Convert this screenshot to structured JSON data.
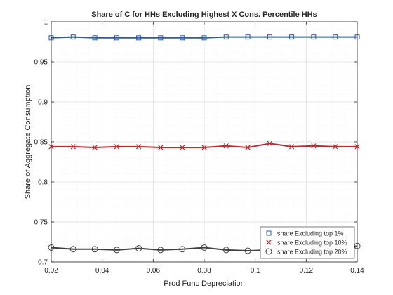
{
  "chart_data": {
    "type": "line",
    "title": "Share of C for HHs Excluding Highest X Cons. Percentile HHs",
    "xlabel": "Prod Func Depreciation",
    "ylabel": "Share of Aggregate Consumption",
    "xlim": [
      0.02,
      0.14
    ],
    "ylim": [
      0.7,
      1.0
    ],
    "xticks": [
      0.02,
      0.04,
      0.06,
      0.08,
      0.1,
      0.12,
      0.14
    ],
    "xtick_labels": [
      "0.02",
      "0.04",
      "0.06",
      "0.08",
      "0.1",
      "0.12",
      "0.14"
    ],
    "yticks": [
      0.7,
      0.75,
      0.8,
      0.85,
      0.9,
      0.95,
      1.0
    ],
    "ytick_labels": [
      "0.7",
      "0.75",
      "0.8",
      "0.85",
      "0.9",
      "0.95",
      "1"
    ],
    "grid": true,
    "legend_position": "bottom-right",
    "x": [
      0.02,
      0.0286,
      0.0371,
      0.0457,
      0.0543,
      0.0629,
      0.0714,
      0.08,
      0.0886,
      0.0971,
      0.1057,
      0.1143,
      0.1229,
      0.1314,
      0.14
    ],
    "series": [
      {
        "name": "share Excluding top 1%",
        "marker": "square",
        "color": "#2a5aa8",
        "values": [
          0.98,
          0.981,
          0.98,
          0.98,
          0.98,
          0.98,
          0.98,
          0.98,
          0.981,
          0.981,
          0.981,
          0.981,
          0.981,
          0.981,
          0.981
        ]
      },
      {
        "name": "share Excluding top 10%",
        "marker": "x",
        "color": "#c1272d",
        "values": [
          0.844,
          0.844,
          0.843,
          0.844,
          0.844,
          0.843,
          0.843,
          0.843,
          0.845,
          0.843,
          0.848,
          0.844,
          0.845,
          0.844,
          0.844
        ]
      },
      {
        "name": "share Excluding top 20%",
        "marker": "circle",
        "color": "#404040",
        "values": [
          0.718,
          0.716,
          0.716,
          0.715,
          0.717,
          0.715,
          0.716,
          0.718,
          0.715,
          0.714,
          0.715,
          0.714,
          0.715,
          0.715,
          0.72
        ]
      }
    ]
  }
}
